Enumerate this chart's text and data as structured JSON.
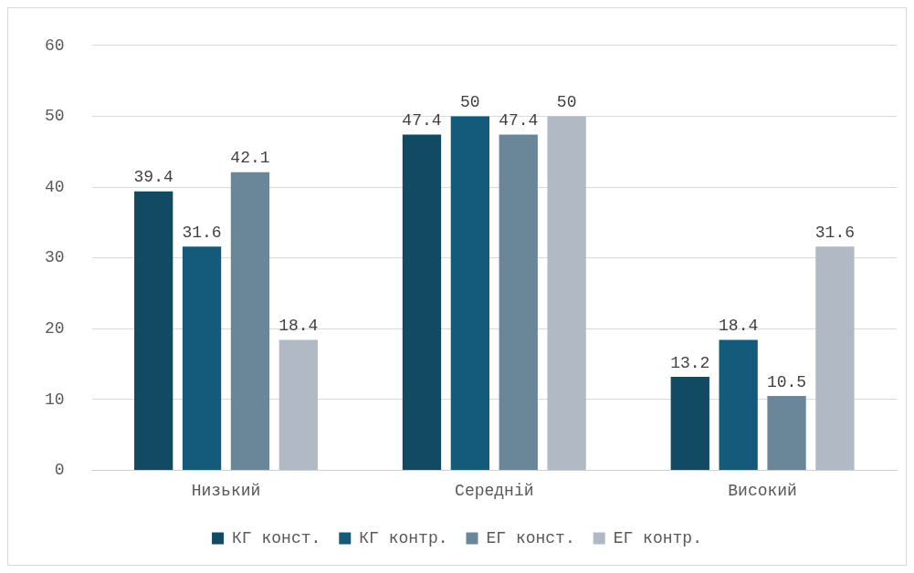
{
  "chart_data": {
    "type": "bar",
    "categories": [
      "Низький",
      "Середній",
      "Високий"
    ],
    "series": [
      {
        "name": "КГ конст.",
        "color": "#134a63",
        "values": [
          39.4,
          47.4,
          13.2
        ]
      },
      {
        "name": "КГ контр.",
        "color": "#145a7a",
        "values": [
          31.6,
          50,
          18.4
        ]
      },
      {
        "name": "ЕГ конст.",
        "color": "#6a8799",
        "values": [
          42.1,
          47.4,
          10.5
        ]
      },
      {
        "name": "ЕГ контр.",
        "color": "#b0b9c4",
        "values": [
          18.4,
          50,
          31.6
        ]
      }
    ],
    "ylim": [
      0,
      60
    ],
    "yticks": [
      0,
      10,
      20,
      30,
      40,
      50,
      60
    ],
    "grid": "y",
    "legend": "bottom",
    "data_labels": true
  }
}
